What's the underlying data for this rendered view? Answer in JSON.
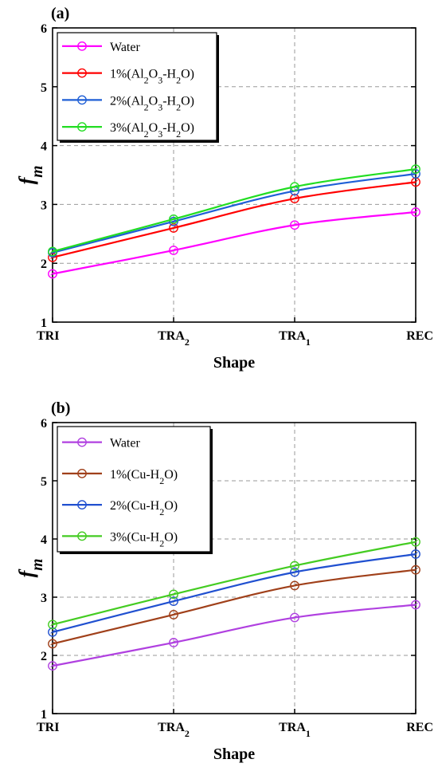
{
  "chart_data": [
    {
      "panel_label": "(a)",
      "type": "line",
      "categories": [
        "TRI",
        "TRA2",
        "TRA1",
        "REC"
      ],
      "x_tick_labels": [
        {
          "main": "TRI",
          "sub": ""
        },
        {
          "main": "TRA",
          "sub": "2"
        },
        {
          "main": "TRA",
          "sub": "1"
        },
        {
          "main": "REC",
          "sub": ""
        }
      ],
      "ylabel": "fm",
      "ylabel_main": "f",
      "ylabel_sub": "m",
      "xlabel": "Shape",
      "ylim": [
        1,
        6
      ],
      "y_ticks": [
        "1",
        "2",
        "3",
        "4",
        "5",
        "6"
      ],
      "grid": true,
      "legend_position": "top-left",
      "series": [
        {
          "name": "Water",
          "name_parts": [
            {
              "t": "Water"
            }
          ],
          "color": "#ff00ff",
          "values": [
            1.82,
            2.22,
            2.65,
            2.87
          ]
        },
        {
          "name": "1%(Al2O3-H2O)",
          "name_parts": [
            {
              "t": "1%(Al"
            },
            {
              "t": "2",
              "sub": true
            },
            {
              "t": "O"
            },
            {
              "t": "3",
              "sub": true
            },
            {
              "t": "-H"
            },
            {
              "t": "2",
              "sub": true
            },
            {
              "t": "O)"
            }
          ],
          "color": "#ff0000",
          "values": [
            2.1,
            2.6,
            3.1,
            3.38
          ]
        },
        {
          "name": "2%(Al2O3-H2O)",
          "name_parts": [
            {
              "t": "2%(Al"
            },
            {
              "t": "2",
              "sub": true
            },
            {
              "t": "O"
            },
            {
              "t": "3",
              "sub": true
            },
            {
              "t": "-H"
            },
            {
              "t": "2",
              "sub": true
            },
            {
              "t": "O)"
            }
          ],
          "color": "#1f5fd6",
          "values": [
            2.18,
            2.71,
            3.23,
            3.52
          ]
        },
        {
          "name": "3%(Al2O3-H2O)",
          "name_parts": [
            {
              "t": "3%(Al"
            },
            {
              "t": "2",
              "sub": true
            },
            {
              "t": "O"
            },
            {
              "t": "3",
              "sub": true
            },
            {
              "t": "-H"
            },
            {
              "t": "2",
              "sub": true
            },
            {
              "t": "O)"
            }
          ],
          "color": "#22dd22",
          "values": [
            2.2,
            2.75,
            3.3,
            3.6
          ]
        }
      ]
    },
    {
      "panel_label": "(b)",
      "type": "line",
      "categories": [
        "TRI",
        "TRA2",
        "TRA1",
        "REC"
      ],
      "x_tick_labels": [
        {
          "main": "TRI",
          "sub": ""
        },
        {
          "main": "TRA",
          "sub": "2"
        },
        {
          "main": "TRA",
          "sub": "1"
        },
        {
          "main": "REC",
          "sub": ""
        }
      ],
      "ylabel": "fm",
      "ylabel_main": "f",
      "ylabel_sub": "m",
      "xlabel": "Shape",
      "ylim": [
        1,
        6
      ],
      "y_ticks": [
        "1",
        "2",
        "3",
        "4",
        "5",
        "6"
      ],
      "grid": true,
      "legend_position": "top-left",
      "series": [
        {
          "name": "Water",
          "name_parts": [
            {
              "t": "Water"
            }
          ],
          "color": "#b040e0",
          "values": [
            1.82,
            2.22,
            2.65,
            2.87
          ]
        },
        {
          "name": "1%(Cu-H2O)",
          "name_parts": [
            {
              "t": "1%(Cu-H"
            },
            {
              "t": "2",
              "sub": true
            },
            {
              "t": "O)"
            }
          ],
          "color": "#a0401a",
          "values": [
            2.2,
            2.7,
            3.2,
            3.47
          ]
        },
        {
          "name": "2%(Cu-H2O)",
          "name_parts": [
            {
              "t": "2%(Cu-H"
            },
            {
              "t": "2",
              "sub": true
            },
            {
              "t": "O)"
            }
          ],
          "color": "#2050d0",
          "values": [
            2.4,
            2.93,
            3.43,
            3.74
          ]
        },
        {
          "name": "3%(Cu-H2O)",
          "name_parts": [
            {
              "t": "3%(Cu-H"
            },
            {
              "t": "2",
              "sub": true
            },
            {
              "t": "O)"
            }
          ],
          "color": "#44cc22",
          "values": [
            2.53,
            3.05,
            3.54,
            3.95
          ]
        }
      ]
    }
  ]
}
